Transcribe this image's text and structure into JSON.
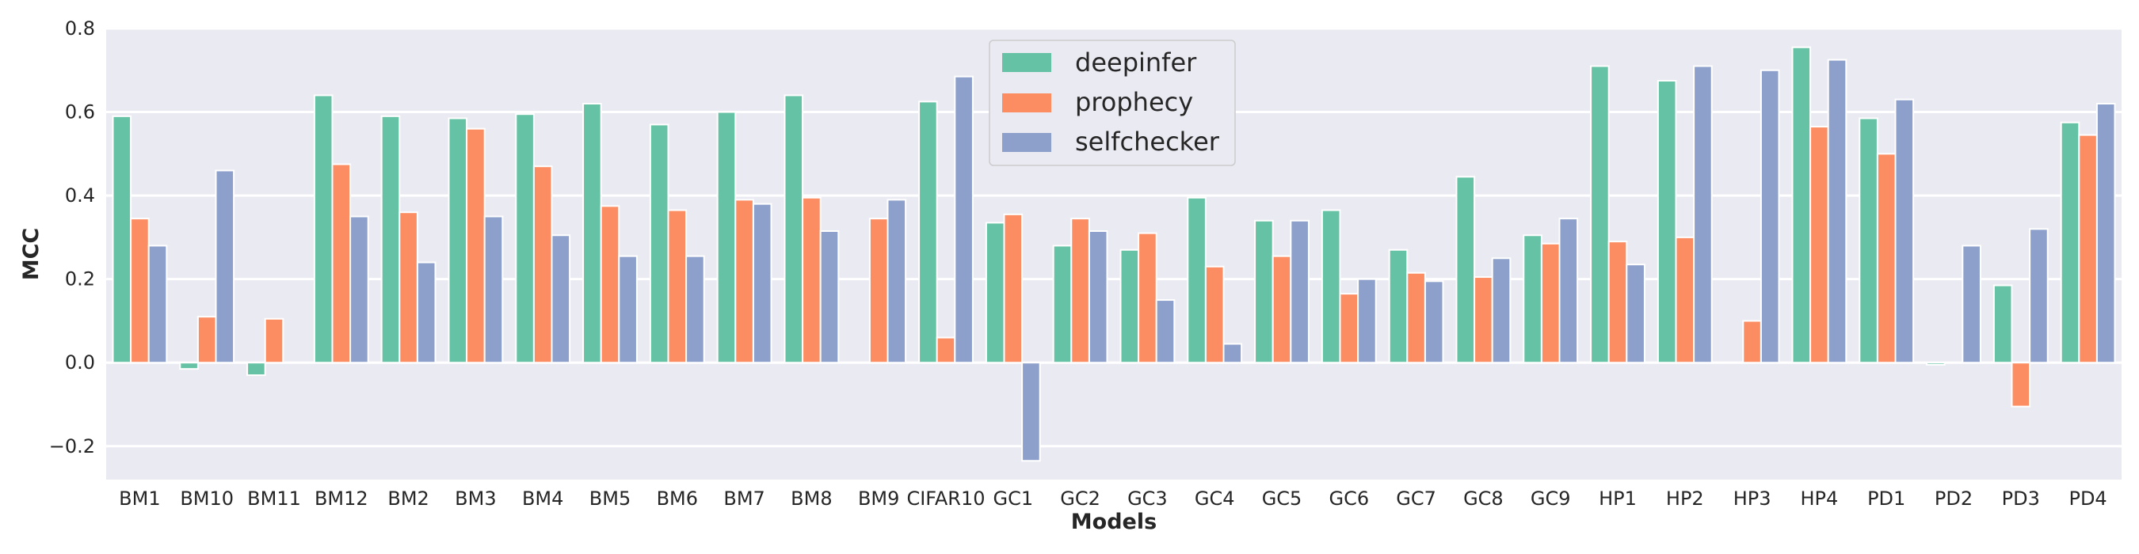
{
  "chart_data": {
    "type": "bar",
    "xlabel": "Models",
    "ylabel": "MCC",
    "ylim": [
      -0.28,
      0.8
    ],
    "yticks": [
      {
        "value": -0.2,
        "label": "−0.2"
      },
      {
        "value": 0.0,
        "label": "0.0"
      },
      {
        "value": 0.2,
        "label": "0.2"
      },
      {
        "value": 0.4,
        "label": "0.4"
      },
      {
        "value": 0.6,
        "label": "0.6"
      },
      {
        "value": 0.8,
        "label": "0.8"
      }
    ],
    "grid": true,
    "legend_position": "top-center",
    "categories": [
      "BM1",
      "BM10",
      "BM11",
      "BM12",
      "BM2",
      "BM3",
      "BM4",
      "BM5",
      "BM6",
      "BM7",
      "BM8",
      "BM9",
      "CIFAR10",
      "GC1",
      "GC2",
      "GC3",
      "GC4",
      "GC5",
      "GC6",
      "GC7",
      "GC8",
      "GC9",
      "HP1",
      "HP2",
      "HP3",
      "HP4",
      "PD1",
      "PD2",
      "PD3",
      "PD4"
    ],
    "series": [
      {
        "name": "deepinfer",
        "color": "#66c2a5",
        "values": [
          0.59,
          -0.015,
          -0.03,
          0.64,
          0.59,
          0.585,
          0.595,
          0.62,
          0.57,
          0.6,
          0.64,
          0.0,
          0.625,
          0.335,
          0.28,
          0.27,
          0.395,
          0.34,
          0.365,
          0.27,
          0.445,
          0.305,
          0.71,
          0.675,
          0.0,
          0.755,
          0.585,
          -0.005,
          0.185,
          0.575
        ]
      },
      {
        "name": "prophecy",
        "color": "#fc8d62",
        "values": [
          0.345,
          0.11,
          0.105,
          0.475,
          0.36,
          0.56,
          0.47,
          0.375,
          0.365,
          0.39,
          0.395,
          0.345,
          0.06,
          0.355,
          0.345,
          0.31,
          0.23,
          0.255,
          0.165,
          0.215,
          0.205,
          0.285,
          0.29,
          0.3,
          0.1,
          0.565,
          0.5,
          0.0,
          -0.105,
          0.545
        ]
      },
      {
        "name": "selfchecker",
        "color": "#8da0cb",
        "values": [
          0.28,
          0.46,
          0.0,
          0.35,
          0.24,
          0.35,
          0.305,
          0.255,
          0.255,
          0.38,
          0.315,
          0.39,
          0.685,
          -0.235,
          0.315,
          0.15,
          0.045,
          0.34,
          0.2,
          0.195,
          0.25,
          0.345,
          0.235,
          0.71,
          0.7,
          0.725,
          0.63,
          0.28,
          0.32,
          0.62
        ]
      }
    ]
  }
}
